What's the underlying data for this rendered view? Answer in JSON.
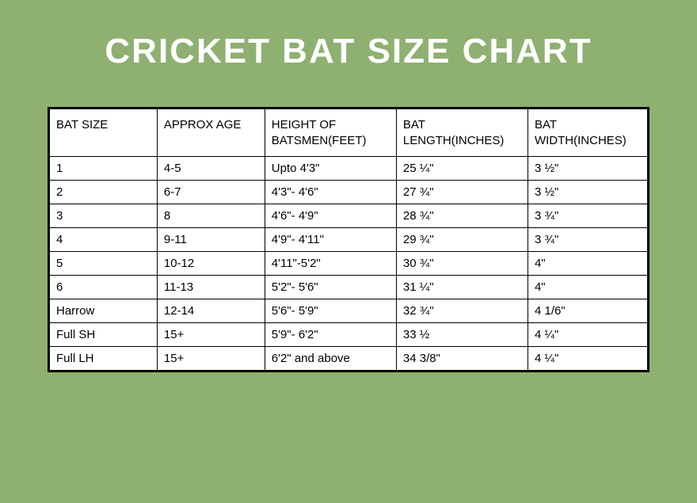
{
  "title": "CRICKET BAT SIZE CHART",
  "table": {
    "type": "table",
    "background_color": "#ffffff",
    "border_color": "#000000",
    "text_color": "#000000",
    "header_fontsize": 15,
    "cell_fontsize": 15,
    "columns": [
      "BAT SIZE",
      "APPROX AGE",
      "HEIGHT OF BATSMEN(FEET)",
      "BAT LENGTH(INCHES)",
      "BAT WIDTH(INCHES)"
    ],
    "column_widths": [
      "18%",
      "18%",
      "22%",
      "22%",
      "20%"
    ],
    "rows": [
      [
        "1",
        "4-5",
        "Upto 4'3\"",
        "25 ¼\"",
        "3 ½\""
      ],
      [
        "2",
        "6-7",
        "4'3\"- 4'6\"",
        "27 ¾\"",
        "3 ½\""
      ],
      [
        "3",
        "8",
        "4'6\"- 4'9\"",
        "28 ¾\"",
        "3 ¾\""
      ],
      [
        "4",
        "9-11",
        "4'9\"- 4'11\"",
        "29 ¾\"",
        "3 ¾\""
      ],
      [
        "5",
        "10-12",
        "4'11\"-5'2\"",
        "30 ¾\"",
        "4\""
      ],
      [
        "6",
        "11-13",
        "5'2\"- 5'6\"",
        "31 ¼\"",
        "4\""
      ],
      [
        "Harrow",
        "12-14",
        "5'6\"- 5'9\"",
        "32 ¾\"",
        "4 1/6\""
      ],
      [
        "Full SH",
        "15+",
        "5'9\"- 6'2\"",
        "33 ½",
        "4 ¼\""
      ],
      [
        "Full LH",
        "15+",
        "6'2\" and above",
        "34 3/8\"",
        "4 ¼\""
      ]
    ]
  },
  "page_background_color": "#8eb071",
  "title_color": "#ffffff",
  "title_fontsize": 44
}
